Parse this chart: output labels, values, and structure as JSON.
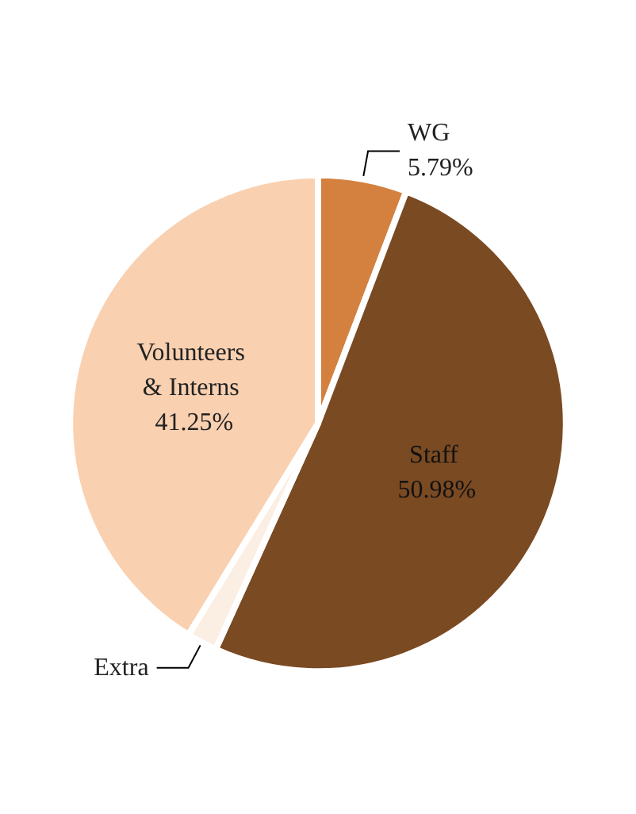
{
  "chart_data": {
    "type": "pie",
    "categories": [
      "WG",
      "Staff",
      "Extra",
      "Volunteers & Interns"
    ],
    "values": [
      5.79,
      50.98,
      1.98,
      41.25
    ],
    "colors": [
      "#d4813f",
      "#7a4a22",
      "#fbeee3",
      "#f9d0b0"
    ],
    "value_labels": [
      "5.79%",
      "50.98%",
      null,
      "41.25%"
    ],
    "legend": false
  }
}
